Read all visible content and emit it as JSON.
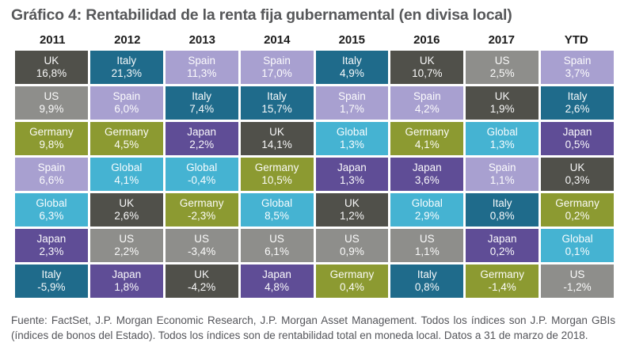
{
  "chart_data": {
    "type": "table",
    "title": "Gráfico 4: Rentabilidad de la renta fija gubernamental (en divisa local)",
    "columns": [
      "2011",
      "2012",
      "2013",
      "2014",
      "2015",
      "2016",
      "2017",
      "YTD"
    ],
    "rows": [
      [
        {
          "label": "UK",
          "value": "16,8%"
        },
        {
          "label": "Italy",
          "value": "21,3%"
        },
        {
          "label": "Spain",
          "value": "11,3%"
        },
        {
          "label": "Spain",
          "value": "17,0%"
        },
        {
          "label": "Italy",
          "value": "4,9%"
        },
        {
          "label": "UK",
          "value": "10,7%"
        },
        {
          "label": "US",
          "value": "2,5%"
        },
        {
          "label": "Spain",
          "value": "3,7%"
        }
      ],
      [
        {
          "label": "US",
          "value": "9,9%"
        },
        {
          "label": "Spain",
          "value": "6,0%"
        },
        {
          "label": "Italy",
          "value": "7,4%"
        },
        {
          "label": "Italy",
          "value": "15,7%"
        },
        {
          "label": "Spain",
          "value": "1,7%"
        },
        {
          "label": "Spain",
          "value": "4,2%"
        },
        {
          "label": "UK",
          "value": "1,9%"
        },
        {
          "label": "Italy",
          "value": "2,6%"
        }
      ],
      [
        {
          "label": "Germany",
          "value": "9,8%"
        },
        {
          "label": "Germany",
          "value": "4,5%"
        },
        {
          "label": "Japan",
          "value": "2,2%"
        },
        {
          "label": "UK",
          "value": "14,1%"
        },
        {
          "label": "Global",
          "value": "1,3%"
        },
        {
          "label": "Germany",
          "value": "4,1%"
        },
        {
          "label": "Global",
          "value": "1,3%"
        },
        {
          "label": "Japan",
          "value": "0,5%"
        }
      ],
      [
        {
          "label": "Spain",
          "value": "6,6%"
        },
        {
          "label": "Global",
          "value": "4,1%"
        },
        {
          "label": "Global",
          "value": "-0,4%"
        },
        {
          "label": "Germany",
          "value": "10,5%"
        },
        {
          "label": "Japan",
          "value": "1,3%"
        },
        {
          "label": "Japan",
          "value": "3,6%"
        },
        {
          "label": "Spain",
          "value": "1,1%"
        },
        {
          "label": "UK",
          "value": "0,3%"
        }
      ],
      [
        {
          "label": "Global",
          "value": "6,3%"
        },
        {
          "label": "UK",
          "value": "2,6%"
        },
        {
          "label": "Germany",
          "value": "-2,3%"
        },
        {
          "label": "Global",
          "value": "8,5%"
        },
        {
          "label": "UK",
          "value": "1,2%"
        },
        {
          "label": "Global",
          "value": "2,9%"
        },
        {
          "label": "Italy",
          "value": "0,8%"
        },
        {
          "label": "Germany",
          "value": "0,2%"
        }
      ],
      [
        {
          "label": "Japan",
          "value": "2,3%"
        },
        {
          "label": "US",
          "value": "2,2%"
        },
        {
          "label": "US",
          "value": "-3,4%"
        },
        {
          "label": "US",
          "value": "6,1%"
        },
        {
          "label": "US",
          "value": "0,9%"
        },
        {
          "label": "US",
          "value": "1,1%"
        },
        {
          "label": "Japan",
          "value": "0,2%"
        },
        {
          "label": "Global",
          "value": "0,1%"
        }
      ],
      [
        {
          "label": "Italy",
          "value": "-5,9%"
        },
        {
          "label": "Japan",
          "value": "1,8%"
        },
        {
          "label": "UK",
          "value": "-4,2%"
        },
        {
          "label": "Japan",
          "value": "4,8%"
        },
        {
          "label": "Germany",
          "value": "0,4%"
        },
        {
          "label": "Italy",
          "value": "0,8%"
        },
        {
          "label": "Germany",
          "value": "-1,4%"
        },
        {
          "label": "US",
          "value": "-1,2%"
        }
      ]
    ],
    "colors": {
      "UK": "#50504a",
      "US": "#8e8e8b",
      "Italy": "#1f6b8b",
      "Spain": "#a8a0d0",
      "Germany": "#8c9a31",
      "Japan": "#5f4d96",
      "Global": "#45b3d2"
    }
  },
  "footer": {
    "lines": [
      "Fuente: FactSet, J.P. Morgan Economic Research, J.P. Morgan Asset Management. Todos los índices son J.P. Morgan GBIs",
      "(índices de bonos del Estado). Todos los índices son de rentabilidad total en moneda local. Datos a 31 de marzo de 2018."
    ]
  }
}
